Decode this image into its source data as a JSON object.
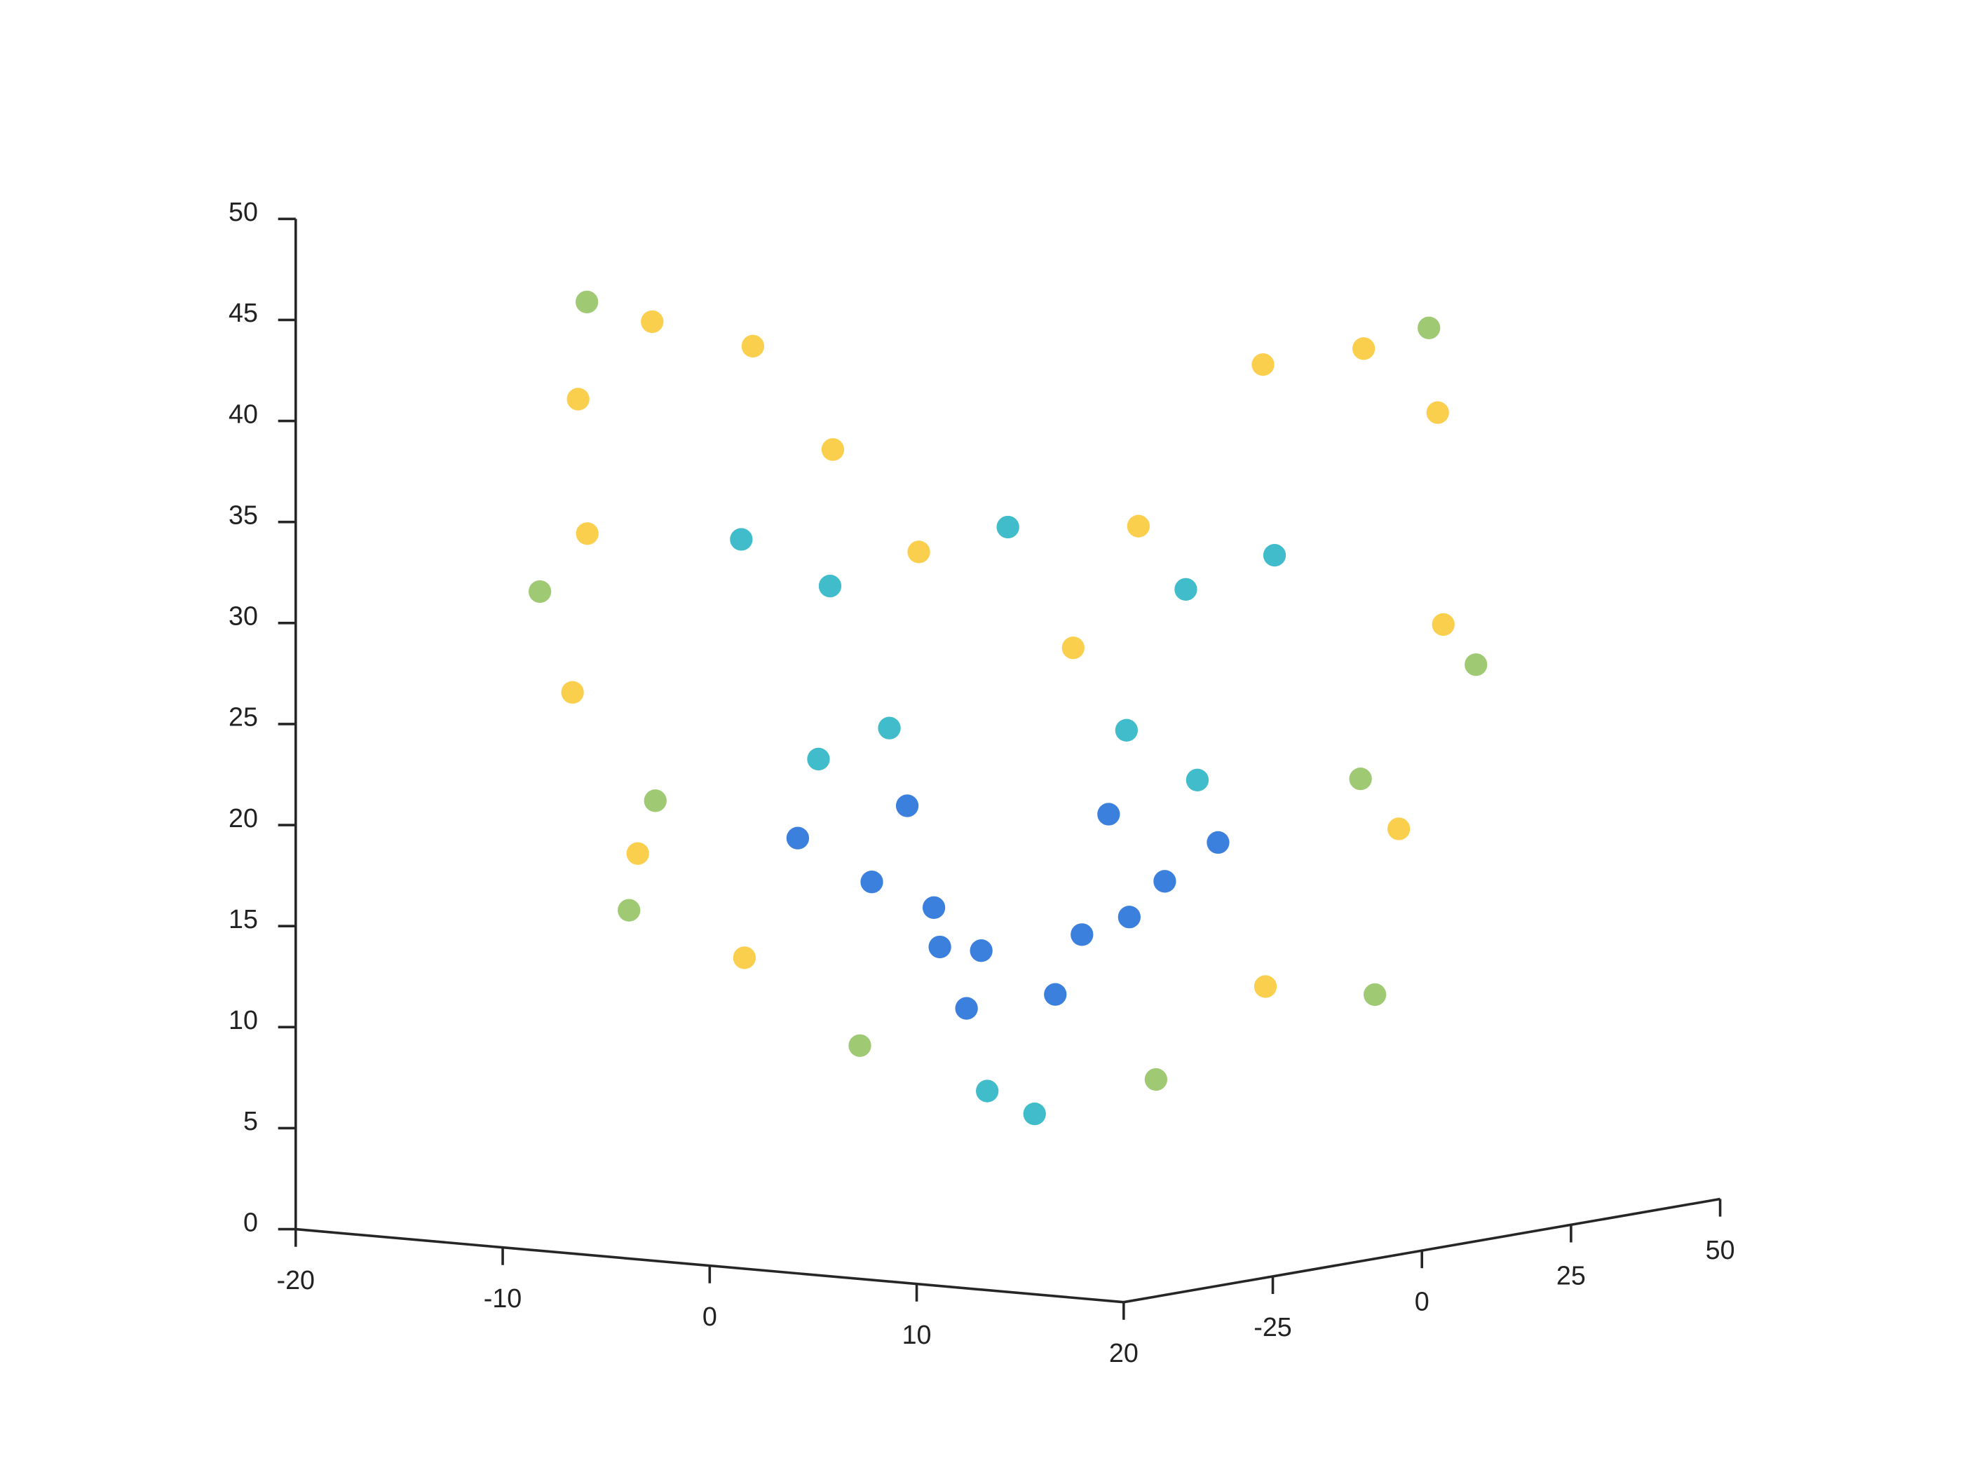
{
  "chart_data": {
    "type": "scatter3d",
    "xlim": [
      -20,
      20
    ],
    "xticks": [
      -20,
      -10,
      0,
      10,
      20
    ],
    "ylim": [
      -50,
      50
    ],
    "yticks": [
      -25,
      0,
      25,
      50
    ],
    "zlim": [
      0,
      50
    ],
    "zticks": [
      0,
      5,
      10,
      15,
      20,
      25,
      30,
      35,
      40,
      45,
      50
    ],
    "series": [
      {
        "color": "#f9c72f",
        "x": [
          -15,
          -12,
          -8,
          -16,
          -17,
          -15,
          -11,
          -5,
          -2,
          15,
          12,
          8,
          17,
          16,
          11,
          4,
          2
        ],
        "y": [
          -20,
          -18,
          -15,
          -15,
          -14,
          -10,
          -6,
          -12,
          -8,
          20,
          18,
          15,
          14,
          10,
          5,
          8,
          4
        ],
        "z": [
          40,
          44,
          43,
          33,
          25,
          17,
          12,
          38,
          33,
          40,
          43,
          42,
          30,
          20,
          12,
          34,
          28
        ]
      },
      {
        "color": "#8fbf5c",
        "x": [
          -18,
          -14,
          -16,
          -6,
          18,
          14,
          16,
          6,
          -13,
          13
        ],
        "y": [
          -16,
          -22,
          -8,
          -4,
          16,
          22,
          6,
          4,
          -14,
          14
        ],
        "z": [
          30,
          45,
          14,
          8,
          28,
          44,
          12,
          7,
          20,
          22
        ]
      },
      {
        "color": "#1fb0c1",
        "x": [
          -10,
          -6,
          -8,
          -4,
          0,
          10,
          6,
          8,
          4,
          -1,
          1
        ],
        "y": [
          -10,
          -9,
          -4,
          -6,
          0,
          10,
          9,
          4,
          6,
          0,
          1
        ],
        "z": [
          33,
          31,
          22,
          24,
          34,
          33,
          31,
          22,
          24,
          6,
          5
        ]
      },
      {
        "color": "#1a6ad8",
        "x": [
          -6,
          -3,
          -2,
          2,
          5,
          7,
          -9,
          9,
          -4,
          4,
          -3,
          3,
          -1
        ],
        "y": [
          -2,
          -1,
          0,
          1,
          3,
          2,
          -4,
          4,
          -3,
          3,
          -2,
          2,
          -1
        ],
        "z": [
          16,
          13,
          10,
          11,
          15,
          17,
          18,
          19,
          20,
          20,
          15,
          14,
          13
        ]
      }
    ]
  }
}
